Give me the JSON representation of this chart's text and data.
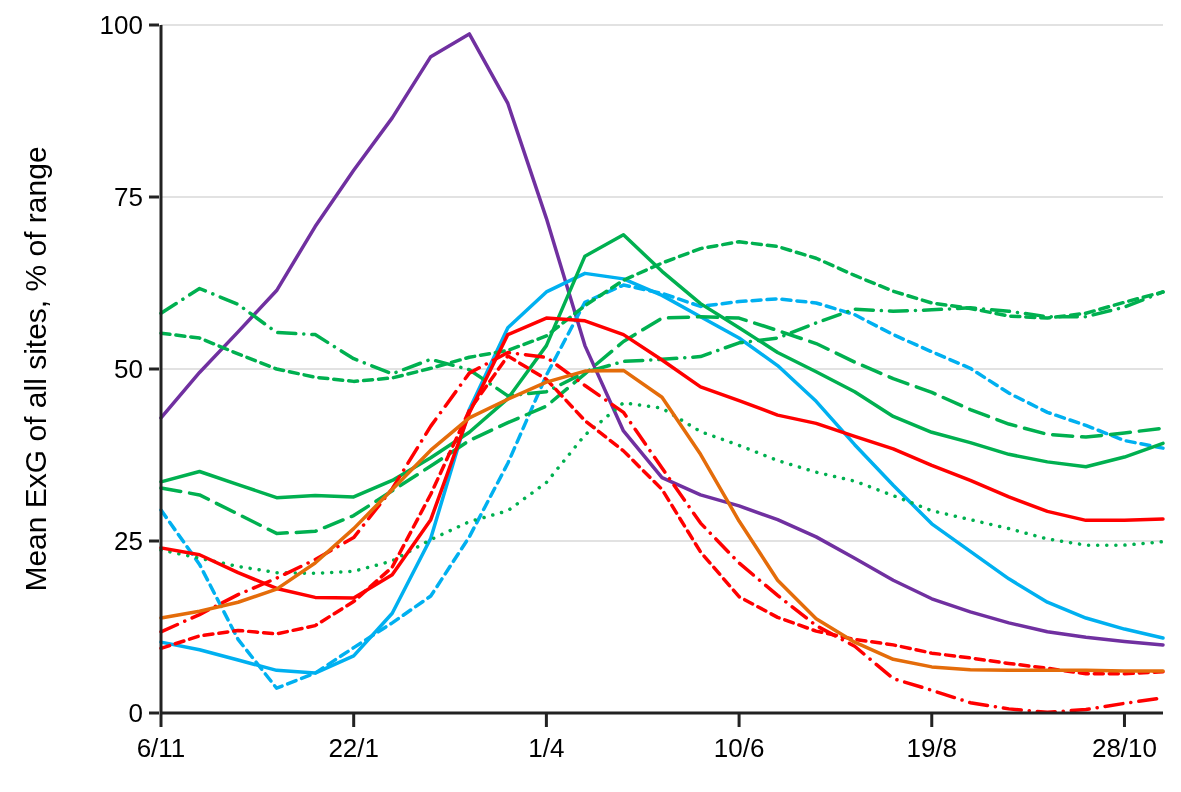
{
  "chart_data": {
    "type": "line",
    "ylabel": "Mean ExG of all sites, % of range",
    "categories": [
      "6/11",
      null,
      null,
      null,
      null,
      "22/1",
      null,
      null,
      null,
      null,
      "1/4",
      null,
      null,
      null,
      null,
      "10/6",
      null,
      null,
      null,
      null,
      "19/8",
      null,
      null,
      null,
      null,
      "28/10",
      null
    ],
    "ylim": [
      0,
      100
    ],
    "yticks": [
      0,
      25,
      50,
      75,
      100
    ],
    "grid": "y",
    "marker": "none",
    "series": [
      {
        "color": "#7030a0",
        "line_style": "solid",
        "values": [
          42.9,
          49.5,
          55.4,
          61.4,
          70.7,
          78.9,
          86.5,
          95.4,
          98.7,
          88.6,
          71.9,
          53.4,
          41.0,
          34.2,
          31.7,
          30.1,
          28.1,
          25.6,
          22.5,
          19.3,
          16.6,
          14.7,
          13.1,
          11.8,
          11.0,
          10.4,
          9.9
        ]
      },
      {
        "color": "#00b0f0",
        "line_style": "solid",
        "values": [
          10.3,
          9.2,
          7.7,
          6.2,
          5.8,
          8.3,
          14.5,
          25.4,
          44.1,
          56.0,
          61.2,
          63.9,
          63.1,
          60.7,
          57.6,
          54.5,
          50.5,
          45.3,
          39.0,
          33.1,
          27.5,
          23.5,
          19.5,
          16.1,
          13.8,
          12.2,
          10.9
        ]
      },
      {
        "color": "#00b0f0",
        "line_style": "dashed",
        "values": [
          29.5,
          21.6,
          10.7,
          3.6,
          5.8,
          9.5,
          13.1,
          17.0,
          25.6,
          36.3,
          49.1,
          59.7,
          62.2,
          61.0,
          59.1,
          59.8,
          60.2,
          59.6,
          57.9,
          55.0,
          52.5,
          50.1,
          46.5,
          43.7,
          41.8,
          39.6,
          38.5
        ]
      },
      {
        "color": "#00b050",
        "line_style": "solid",
        "values": [
          33.6,
          35.1,
          33.2,
          31.3,
          31.6,
          31.4,
          33.8,
          37.1,
          40.8,
          45.7,
          53.4,
          66.4,
          69.5,
          64.2,
          59.5,
          56.0,
          52.4,
          49.6,
          46.7,
          43.1,
          40.8,
          39.3,
          37.6,
          36.5,
          35.8,
          37.2,
          39.2
        ]
      },
      {
        "color": "#00b050",
        "line_style": "longdash",
        "values": [
          32.7,
          31.7,
          28.9,
          26.1,
          26.4,
          28.7,
          32.3,
          35.9,
          39.6,
          42.2,
          44.6,
          49.3,
          54.0,
          57.4,
          57.6,
          57.4,
          55.6,
          53.7,
          51.0,
          48.6,
          46.6,
          44.1,
          42.0,
          40.5,
          40.1,
          40.7,
          41.4
        ]
      },
      {
        "color": "#00b050",
        "line_style": "dashdot",
        "values": [
          58.1,
          61.7,
          59.4,
          55.3,
          55.0,
          51.5,
          49.3,
          51.4,
          49.9,
          46.1,
          46.7,
          49.5,
          51.1,
          51.4,
          51.8,
          53.8,
          54.5,
          56.7,
          58.7,
          58.4,
          58.6,
          58.9,
          58.4,
          57.6,
          57.6,
          59.0,
          61.2
        ]
      },
      {
        "color": "#00b050",
        "line_style": "dashed",
        "values": [
          55.2,
          54.5,
          52.2,
          50.0,
          48.8,
          48.2,
          48.7,
          50.1,
          51.7,
          52.7,
          54.8,
          59.2,
          62.9,
          65.4,
          67.5,
          68.5,
          67.8,
          66.1,
          63.6,
          61.3,
          59.6,
          58.8,
          57.7,
          57.4,
          58.1,
          59.7,
          61.2
        ]
      },
      {
        "color": "#00b050",
        "line_style": "dotted",
        "values": [
          23.7,
          22.5,
          21.3,
          20.4,
          20.3,
          20.6,
          22.1,
          25.2,
          27.8,
          29.4,
          33.5,
          40.4,
          45.1,
          44.3,
          40.9,
          38.9,
          36.7,
          35.0,
          33.7,
          31.6,
          29.4,
          28.1,
          26.8,
          25.3,
          24.4,
          24.4,
          24.9
        ]
      },
      {
        "color": "#ff0000",
        "line_style": "solid",
        "values": [
          24.0,
          23.0,
          20.4,
          18.1,
          16.8,
          16.7,
          20.1,
          28.1,
          43.6,
          55.0,
          57.4,
          57.0,
          55.0,
          51.3,
          47.4,
          45.4,
          43.3,
          42.1,
          40.2,
          38.4,
          36.0,
          33.8,
          31.4,
          29.3,
          28.0,
          28.0,
          28.2
        ]
      },
      {
        "color": "#ff0000",
        "line_style": "dashed",
        "values": [
          9.4,
          11.2,
          12.0,
          11.5,
          12.7,
          16.2,
          21.2,
          31.8,
          44.0,
          51.9,
          48.5,
          42.5,
          38.1,
          32.5,
          23.4,
          16.9,
          13.9,
          11.9,
          10.7,
          9.9,
          8.7,
          8.0,
          7.2,
          6.5,
          5.7,
          5.7,
          6.0
        ]
      },
      {
        "color": "#ff0000",
        "line_style": "dashdot",
        "values": [
          11.8,
          14.3,
          17.2,
          19.6,
          22.3,
          25.5,
          32.6,
          41.7,
          49.4,
          52.4,
          51.7,
          47.6,
          43.7,
          35.6,
          27.6,
          21.8,
          17.1,
          12.7,
          9.7,
          5.0,
          3.3,
          1.5,
          0.6,
          0.1,
          0.5,
          1.4,
          2.2
        ]
      },
      {
        "color": "#e46c0a",
        "line_style": "solid",
        "values": [
          13.8,
          14.8,
          16.1,
          18.0,
          21.8,
          26.8,
          32.5,
          38.2,
          42.9,
          45.6,
          48.1,
          49.7,
          49.8,
          45.9,
          37.6,
          27.9,
          19.3,
          13.7,
          10.3,
          7.8,
          6.7,
          6.3,
          6.2,
          6.2,
          6.2,
          6.1,
          6.1
        ]
      }
    ]
  }
}
